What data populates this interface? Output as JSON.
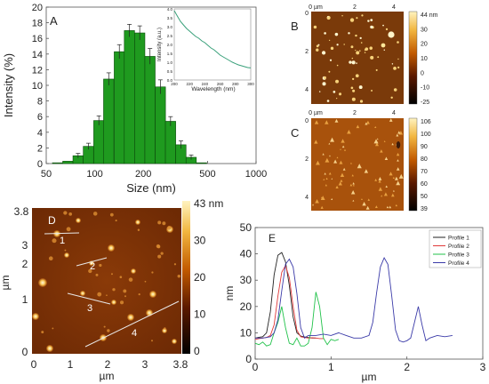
{
  "panels": {
    "A": {
      "letter": "A",
      "chart_data": {
        "type": "bar",
        "xlabel": "Size (nm)",
        "ylabel": "Intensity (%)",
        "xscale": "log",
        "xlim": [
          50,
          1000
        ],
        "ylim": [
          0,
          20
        ],
        "xticks": [
          "50",
          "100",
          "200",
          "500",
          "1000"
        ],
        "yticks": [
          "0",
          "2",
          "4",
          "6",
          "8",
          "10",
          "12",
          "14",
          "16",
          "18",
          "20"
        ],
        "bars": [
          {
            "x": 58.8,
            "y": 0.1,
            "err": 0
          },
          {
            "x": 68.1,
            "y": 0.3,
            "err": 0
          },
          {
            "x": 78.8,
            "y": 1.0,
            "err": 0.3
          },
          {
            "x": 91.3,
            "y": 2.2,
            "err": 0.4
          },
          {
            "x": 106,
            "y": 5.5,
            "err": 0.6
          },
          {
            "x": 122,
            "y": 10.8,
            "err": 0.8
          },
          {
            "x": 142,
            "y": 14.3,
            "err": 0.9
          },
          {
            "x": 164,
            "y": 17.0,
            "err": 0.8
          },
          {
            "x": 190,
            "y": 16.7,
            "err": 0.9
          },
          {
            "x": 220,
            "y": 13.7,
            "err": 1.0
          },
          {
            "x": 255,
            "y": 9.8,
            "err": 0.9
          },
          {
            "x": 295,
            "y": 5.4,
            "err": 0.6
          },
          {
            "x": 342,
            "y": 2.4,
            "err": 0.5
          },
          {
            "x": 396,
            "y": 0.8,
            "err": 0.3
          },
          {
            "x": 459,
            "y": 0.1,
            "err": 0
          }
        ],
        "inset": {
          "type": "line",
          "xlabel": "Wavelength (nm)",
          "ylabel": "Intensity (a.u.)",
          "xlim": [
            200,
            300
          ],
          "ylim": [
            0,
            4.0
          ],
          "xticks": [
            "200",
            "220",
            "240",
            "260",
            "280",
            "300"
          ],
          "yticks": [
            "0.0",
            "0.5",
            "1.0",
            "1.5",
            "2.0",
            "2.5",
            "3.0",
            "3.5",
            "4.0"
          ],
          "x": [
            200,
            204,
            208,
            212,
            216,
            220,
            224,
            228,
            232,
            236,
            240,
            244,
            248,
            252,
            256,
            260,
            264,
            268,
            272,
            276,
            280,
            284,
            288,
            292,
            296,
            300
          ],
          "y": [
            3.9,
            3.6,
            3.3,
            3.1,
            2.9,
            2.75,
            2.6,
            2.45,
            2.35,
            2.2,
            2.1,
            1.95,
            1.8,
            1.7,
            1.55,
            1.4,
            1.3,
            1.2,
            1.1,
            1.0,
            0.92,
            0.85,
            0.8,
            0.75,
            0.7,
            0.68
          ]
        }
      }
    },
    "B": {
      "letter": "B",
      "xticks": [
        "0 µm",
        "2",
        "4"
      ],
      "yticks": [
        "0",
        "2",
        "4"
      ],
      "colorbar_ticks": [
        "44 nm",
        "30",
        "20",
        "10",
        "0",
        "-10",
        "-25"
      ]
    },
    "C": {
      "letter": "C",
      "xticks": [
        "0 µm",
        "2",
        "4"
      ],
      "yticks": [
        "0",
        "2",
        "4"
      ],
      "colorbar_ticks": [
        "106",
        "100",
        "90",
        "80",
        "70",
        "60",
        "50",
        "39"
      ]
    },
    "D": {
      "letter": "D",
      "xlabel": "µm",
      "ylabel": "µm",
      "xticks": [
        "0",
        "1",
        "2",
        "3",
        "3.8"
      ],
      "yticks": [
        "3.8",
        "3",
        "2",
        "1",
        "0"
      ],
      "colorbar_ticks": [
        "43 nm",
        "30",
        "20",
        "10",
        "0"
      ],
      "profile_labels": [
        "1",
        "2",
        "3",
        "4"
      ]
    },
    "E": {
      "letter": "E",
      "chart_data": {
        "type": "line",
        "xlabel": "µm",
        "ylabel": "nm",
        "xlim": [
          0,
          3
        ],
        "ylim": [
          0,
          50
        ],
        "xticks": [
          "0",
          "1",
          "2",
          "3"
        ],
        "yticks": [
          "0",
          "10",
          "20",
          "30",
          "40",
          "50"
        ],
        "legend_position": "top-right",
        "series": [
          {
            "name": "Profile 1",
            "color": "#222222",
            "x": [
              0,
              0.05,
              0.1,
              0.15,
              0.2,
              0.25,
              0.3,
              0.35,
              0.4,
              0.45,
              0.5,
              0.55,
              0.6,
              0.65,
              0.7,
              0.75,
              0.8
            ],
            "y": [
              8,
              8.3,
              8.5,
              10,
              18,
              32,
              39.5,
              40.5,
              37,
              28,
              16,
              10,
              8.8,
              8.4,
              8.2,
              8,
              8
            ]
          },
          {
            "name": "Profile 2",
            "color": "#e03a3a",
            "x": [
              0,
              0.05,
              0.1,
              0.15,
              0.2,
              0.25,
              0.3,
              0.35,
              0.4,
              0.45,
              0.5,
              0.55,
              0.6,
              0.65,
              0.7,
              0.75,
              0.8,
              0.85,
              0.9
            ],
            "y": [
              7.5,
              7.8,
              8,
              8.2,
              9,
              13,
              24,
              33,
              35.5,
              31,
              20,
              11,
              8.5,
              8.2,
              8,
              8.1,
              8,
              7.8,
              7.8
            ]
          },
          {
            "name": "Profile 3",
            "color": "#21c24a",
            "x": [
              0,
              0.05,
              0.1,
              0.15,
              0.2,
              0.25,
              0.3,
              0.35,
              0.4,
              0.45,
              0.5,
              0.55,
              0.6,
              0.65,
              0.7,
              0.75,
              0.8,
              0.85,
              0.9,
              0.95,
              1.0,
              1.05,
              1.1
            ],
            "y": [
              6,
              5.5,
              6.5,
              5,
              5.5,
              10,
              14,
              20,
              12,
              6,
              5.5,
              8,
              5,
              5,
              6,
              12,
              25.5,
              20,
              8,
              5.5,
              7.5,
              7,
              7.5
            ]
          },
          {
            "name": "Profile 4",
            "color": "#3a3aa8",
            "x": [
              0,
              0.1,
              0.2,
              0.25,
              0.3,
              0.35,
              0.4,
              0.45,
              0.5,
              0.55,
              0.6,
              0.65,
              0.7,
              0.8,
              0.9,
              1.0,
              1.1,
              1.2,
              1.3,
              1.4,
              1.5,
              1.55,
              1.6,
              1.65,
              1.7,
              1.75,
              1.8,
              1.85,
              1.9,
              1.95,
              2.0,
              2.05,
              2.1,
              2.15,
              2.2,
              2.25,
              2.3,
              2.4,
              2.5,
              2.6
            ],
            "y": [
              8,
              8,
              8.5,
              10,
              15,
              26,
              36,
              38,
              35,
              25,
              12,
              8,
              9,
              9,
              9.5,
              9,
              10,
              9,
              8,
              8,
              9,
              14,
              25,
              35,
              38.5,
              36,
              24,
              11,
              7,
              6.5,
              7,
              8,
              14,
              20,
              13,
              7,
              8,
              9,
              8.5,
              9
            ]
          }
        ]
      }
    }
  }
}
